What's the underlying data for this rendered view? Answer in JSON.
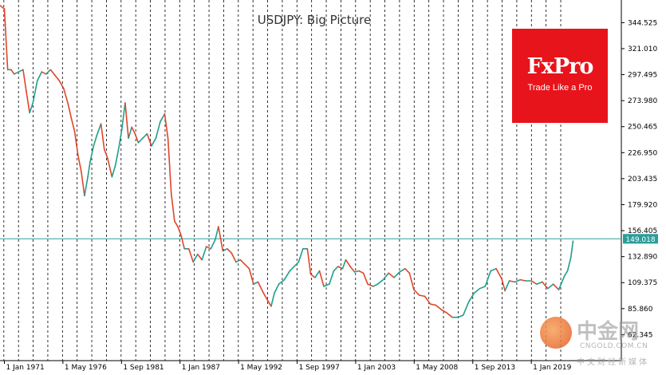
{
  "chart_data": {
    "type": "line",
    "title": "USDJPY: Big Picture",
    "y_ticks": [
      344.525,
      321.01,
      297.495,
      273.98,
      250.465,
      226.95,
      203.435,
      179.92,
      156.405,
      132.89,
      109.375,
      85.86,
      62.345
    ],
    "y_tick_labels": [
      "344.525",
      "321.010",
      "297.495",
      "273.980",
      "250.465",
      "226.950",
      "203.435",
      "179.920",
      "156.405",
      "132.890",
      "109.375",
      "85.860",
      "62.345"
    ],
    "ylim": [
      38.83,
      365.0
    ],
    "x_ticks": [
      {
        "label": "1 Jan 1971",
        "t": 1971.0
      },
      {
        "label": "1 May 1976",
        "t": 1976.33
      },
      {
        "label": "1 Sep 1981",
        "t": 1981.67
      },
      {
        "label": "1 Jan 1987",
        "t": 1987.0
      },
      {
        "label": "1 May 1992",
        "t": 1992.33
      },
      {
        "label": "1 Sep 1997",
        "t": 1997.67
      },
      {
        "label": "1 Jan 2003",
        "t": 2003.0
      },
      {
        "label": "1 May 2008",
        "t": 2008.33
      },
      {
        "label": "1 Sep 2013",
        "t": 2013.67
      },
      {
        "label": "1 Jan 2019",
        "t": 2019.0
      }
    ],
    "xlim": [
      1970.6,
      2027.2
    ],
    "current_price": 149.018,
    "current_price_label": "149.018",
    "grid_x": "dashed vertical",
    "series": [
      {
        "x": [
          1970.6,
          1971.0,
          1971.3,
          1971.6,
          1971.9,
          1972.3,
          1972.7,
          1973.0,
          1973.3,
          1973.6,
          1974.0,
          1974.4,
          1974.8,
          1975.2,
          1975.6,
          1976.0,
          1976.4,
          1976.8,
          1977.1,
          1977.4,
          1977.7,
          1978.0,
          1978.3,
          1978.6,
          1978.8,
          1979.1,
          1979.4,
          1979.8,
          1980.1,
          1980.4,
          1980.8,
          1981.1,
          1981.4,
          1981.7,
          1982.0,
          1982.3,
          1982.6,
          1982.9,
          1983.2,
          1983.6,
          1984.0,
          1984.4,
          1984.8,
          1985.2,
          1985.6,
          1985.9,
          1986.2,
          1986.5,
          1986.8,
          1987.1,
          1987.4,
          1987.8,
          1988.2,
          1988.6,
          1989.0,
          1989.4,
          1989.8,
          1990.2,
          1990.5,
          1990.9,
          1991.3,
          1991.7,
          1992.1,
          1992.5,
          1992.9,
          1993.3,
          1993.7,
          1994.1,
          1994.6,
          1995.0,
          1995.3,
          1995.6,
          1996.0,
          1996.5,
          1997.0,
          1997.4,
          1997.8,
          1998.2,
          1998.6,
          1998.9,
          1999.3,
          1999.7,
          2000.1,
          2000.6,
          2001.0,
          2001.4,
          2001.8,
          2002.1,
          2002.5,
          2002.9,
          2003.3,
          2003.7,
          2004.1,
          2004.6,
          2005.0,
          2005.5,
          2006.0,
          2006.5,
          2007.0,
          2007.5,
          2007.9,
          2008.3,
          2008.8,
          2009.3,
          2009.8,
          2010.3,
          2010.8,
          2011.3,
          2011.8,
          2012.3,
          2012.8,
          2013.3,
          2013.8,
          2014.3,
          2014.8,
          2015.3,
          2015.8,
          2016.3,
          2016.6,
          2017.0,
          2017.5,
          2018.0,
          2018.5,
          2019.0,
          2019.5,
          2020.0,
          2020.5,
          2021.0,
          2021.5,
          2022.0,
          2022.3,
          2022.6,
          2022.8
        ],
        "values": [
          360,
          357,
          302,
          302,
          298,
          300,
          302,
          282,
          263,
          272,
          292,
          300,
          298,
          302,
          297,
          292,
          285,
          271,
          258,
          246,
          225,
          210,
          188,
          205,
          218,
          232,
          242,
          253,
          230,
          222,
          205,
          215,
          230,
          248,
          272,
          240,
          250,
          244,
          236,
          240,
          244,
          233,
          240,
          255,
          262,
          240,
          190,
          165,
          160,
          152,
          140,
          140,
          128,
          135,
          130,
          142,
          140,
          148,
          160,
          138,
          140,
          136,
          128,
          130,
          126,
          122,
          108,
          110,
          100,
          93,
          88,
          100,
          108,
          112,
          120,
          124,
          128,
          140,
          140,
          117,
          114,
          120,
          106,
          108,
          120,
          124,
          122,
          130,
          124,
          119,
          120,
          118,
          108,
          106,
          108,
          112,
          118,
          114,
          119,
          122,
          118,
          103,
          98,
          97,
          90,
          89,
          85,
          82,
          78,
          78,
          80,
          92,
          100,
          104,
          106,
          120,
          122,
          113,
          102,
          111,
          110,
          112,
          111,
          111,
          108,
          110,
          104,
          108,
          103,
          115,
          120,
          132,
          147
        ]
      }
    ]
  }
}
